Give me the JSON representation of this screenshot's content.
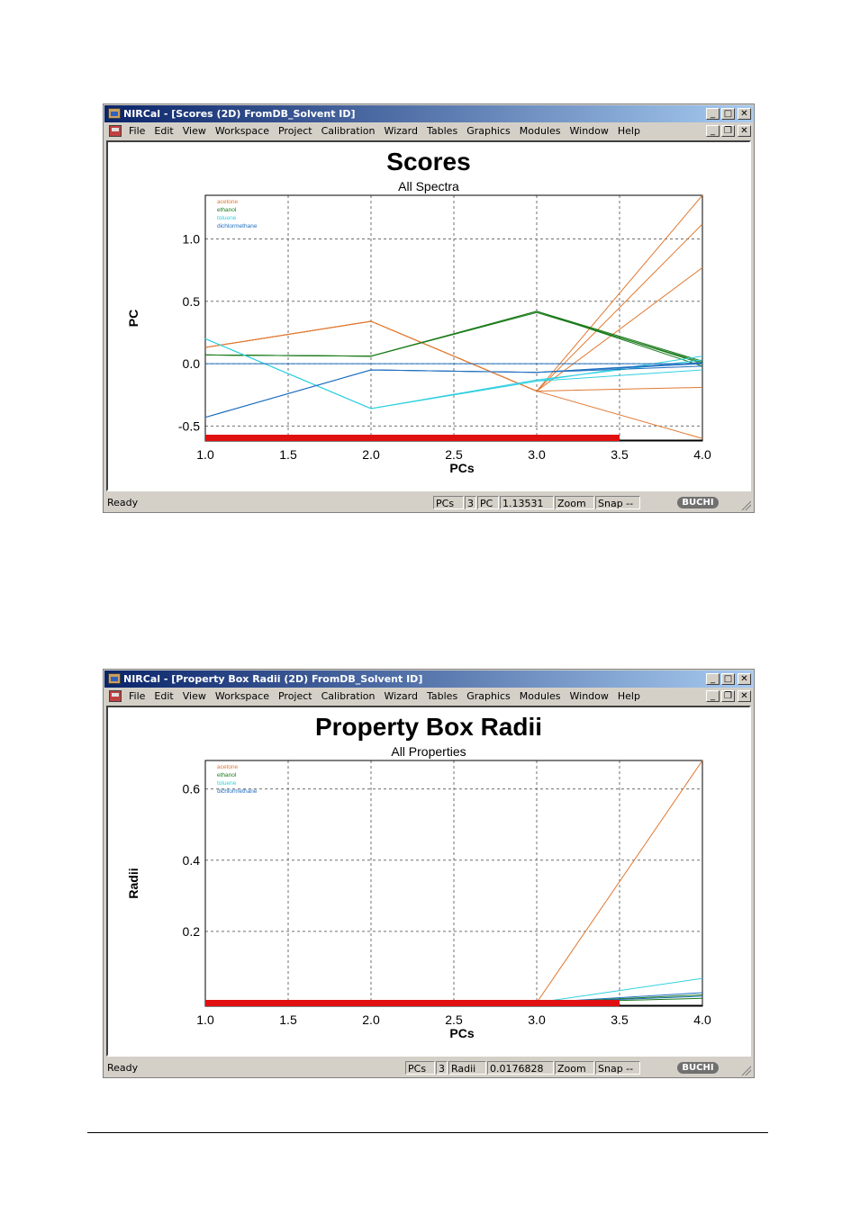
{
  "windows": [
    {
      "title": "NIRCal - [Scores (2D) FromDB_Solvent ID]",
      "menu": [
        "File",
        "Edit",
        "View",
        "Workspace",
        "Project",
        "Calibration",
        "Wizard",
        "Tables",
        "Graphics",
        "Modules",
        "Window",
        "Help"
      ],
      "chart_data": {
        "type": "line",
        "title": "Scores",
        "subtitle": "All Spectra",
        "xlabel": "PCs",
        "ylabel": "PC",
        "xlim": [
          1.0,
          4.0
        ],
        "ylim": [
          -0.62,
          1.35
        ],
        "xticks": [
          "1.0",
          "1.5",
          "2.0",
          "2.5",
          "3.0",
          "3.5",
          "4.0"
        ],
        "xtick_values": [
          1.0,
          1.5,
          2.0,
          2.5,
          3.0,
          3.5,
          4.0
        ],
        "yticks": [
          "1.0",
          "0.5",
          "0.0",
          "-0.5"
        ],
        "ytick_values": [
          1.0,
          0.5,
          0.0,
          -0.5
        ],
        "grid": true,
        "legend_position": "top-left",
        "legend": [
          {
            "label": "acetone",
            "color": "#e07830"
          },
          {
            "label": "ethanol",
            "color": "#1a7a1a"
          },
          {
            "label": "toluene",
            "color": "#30d0e0"
          },
          {
            "label": "dichlormethane",
            "color": "#2070c0"
          }
        ],
        "highlight_bar": {
          "from": 1.0,
          "to": 3.5,
          "color": "#e01010"
        },
        "x": [
          1,
          2,
          3,
          4
        ],
        "series": [
          {
            "color": "#e07830",
            "values": [
              0.13,
              0.34,
              -0.22,
              1.35
            ]
          },
          {
            "color": "#e07830",
            "values": [
              0.13,
              0.34,
              -0.22,
              1.12
            ]
          },
          {
            "color": "#e07830",
            "values": [
              0.13,
              0.34,
              -0.22,
              0.77
            ]
          },
          {
            "color": "#e07830",
            "values": [
              0.13,
              0.34,
              -0.22,
              -0.19
            ]
          },
          {
            "color": "#e07830",
            "values": [
              0.13,
              0.34,
              -0.22,
              -0.6
            ]
          },
          {
            "color": "#1a7a1a",
            "values": [
              0.07,
              0.06,
              0.42,
              0.0
            ]
          },
          {
            "color": "#1a7a1a",
            "values": [
              0.07,
              0.06,
              0.42,
              0.02
            ]
          },
          {
            "color": "#1a7a1a",
            "values": [
              0.07,
              0.06,
              0.42,
              -0.02
            ]
          },
          {
            "color": "#1a7a1a",
            "values": [
              0.07,
              0.06,
              0.41,
              0.01
            ]
          },
          {
            "color": "#30d0e0",
            "values": [
              0.2,
              -0.36,
              -0.14,
              0.06
            ]
          },
          {
            "color": "#30d0e0",
            "values": [
              0.2,
              -0.36,
              -0.13,
              0.03
            ]
          },
          {
            "color": "#30d0e0",
            "values": [
              0.2,
              -0.36,
              -0.14,
              -0.05
            ]
          },
          {
            "color": "#2070c0",
            "values": [
              -0.43,
              -0.05,
              -0.07,
              0.0
            ]
          },
          {
            "color": "#2070c0",
            "values": [
              -0.43,
              -0.05,
              -0.07,
              0.01
            ]
          },
          {
            "color": "#2070c0",
            "values": [
              -0.43,
              -0.05,
              -0.07,
              -0.02
            ]
          },
          {
            "color": "#2070c0",
            "values": [
              0.0,
              0.0,
              0.0,
              0.0
            ]
          }
        ]
      },
      "status": {
        "ready": "Ready",
        "field1": "PCs",
        "field2": "3",
        "field3": "PC",
        "field4": "1.13531",
        "field5": "Zoom",
        "field6": "Snap --",
        "logo": "BUCHI"
      }
    },
    {
      "title": "NIRCal - [Property Box Radii (2D) FromDB_Solvent ID]",
      "menu": [
        "File",
        "Edit",
        "View",
        "Workspace",
        "Project",
        "Calibration",
        "Wizard",
        "Tables",
        "Graphics",
        "Modules",
        "Window",
        "Help"
      ],
      "chart_data": {
        "type": "line",
        "title": "Property Box Radii",
        "subtitle": "All Properties",
        "xlabel": "PCs",
        "ylabel": "Radii",
        "xlim": [
          1.0,
          4.0
        ],
        "ylim": [
          -0.01,
          0.68
        ],
        "xticks": [
          "1.0",
          "1.5",
          "2.0",
          "2.5",
          "3.0",
          "3.5",
          "4.0"
        ],
        "xtick_values": [
          1.0,
          1.5,
          2.0,
          2.5,
          3.0,
          3.5,
          4.0
        ],
        "yticks": [
          "0.6",
          "0.4",
          "0.2"
        ],
        "ytick_values": [
          0.6,
          0.4,
          0.2
        ],
        "grid": true,
        "legend_position": "top-left",
        "legend": [
          {
            "label": "acetone",
            "color": "#e07830"
          },
          {
            "label": "ethanol",
            "color": "#1a7a1a"
          },
          {
            "label": "toluene",
            "color": "#30d0e0"
          },
          {
            "label": "dichlormethane",
            "color": "#2070c0"
          }
        ],
        "highlight_bar": {
          "from": 1.0,
          "to": 3.5,
          "color": "#e01010"
        },
        "x": [
          1,
          2,
          3,
          4
        ],
        "series": [
          {
            "color": "#e07830",
            "values": [
              0.0,
              0.0,
              0.0,
              0.68
            ]
          },
          {
            "color": "#30d0e0",
            "values": [
              0.0,
              0.0,
              0.0,
              0.068
            ]
          },
          {
            "color": "#2070c0",
            "values": [
              0.0,
              0.0,
              0.0,
              0.028
            ]
          },
          {
            "color": "#1a7a1a",
            "values": [
              0.0,
              0.0,
              0.0,
              0.022
            ]
          },
          {
            "color": "#1a7a1a",
            "values": [
              0.0,
              0.0,
              0.0,
              0.012
            ]
          },
          {
            "color": "#2070c0",
            "values": [
              0.0,
              0.0,
              0.0,
              0.018
            ]
          }
        ]
      },
      "status": {
        "ready": "Ready",
        "field1": "PCs",
        "field2": "3",
        "field3": "Radii",
        "field4": "0.0176828",
        "field5": "Zoom",
        "field6": "Snap --",
        "logo": "BUCHI"
      }
    }
  ]
}
